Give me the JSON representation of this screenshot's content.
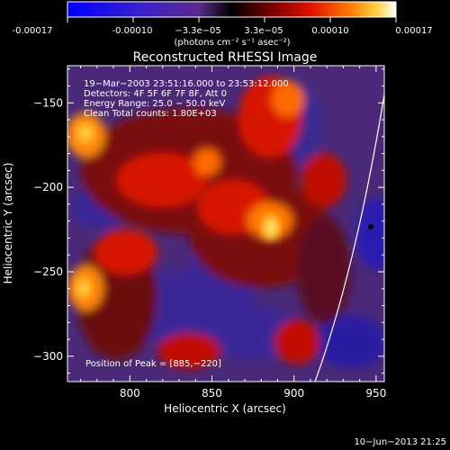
{
  "colorbar": {
    "ticks": [
      "-0.00017",
      "-0.00010",
      "−3.3e−05",
      "3.3e−05",
      "0.00010",
      "0.00017"
    ],
    "units": "(photons cm⁻² s⁻¹ asec⁻²)"
  },
  "title": "Reconstructed RHESSI Image",
  "overlay": {
    "line1": "19−Mar−2003 23:51:16.000 to 23:53:12.000",
    "line2": "Detectors: 4F 5F 6F 7F 8F, Att 0",
    "line3": "Energy Range: 25.0 − 50.0 keV",
    "line4": "Clean     Total counts: 1.80E+03",
    "peak": "Position of Peak = [885,−220]"
  },
  "axes": {
    "xlabel": "Heliocentric X (arcsec)",
    "ylabel": "Heliocentric Y (arcsec)",
    "xticks": [
      {
        "value": 800,
        "label": "800"
      },
      {
        "value": 850,
        "label": "850"
      },
      {
        "value": 900,
        "label": "900"
      },
      {
        "value": 950,
        "label": "950"
      }
    ],
    "yticks": [
      {
        "value": -150,
        "label": "−150"
      },
      {
        "value": -200,
        "label": "−200"
      },
      {
        "value": -250,
        "label": "−250"
      },
      {
        "value": -300,
        "label": "−300"
      }
    ],
    "xlim": [
      762,
      955
    ],
    "ylim": [
      -315,
      -128
    ]
  },
  "timestamp": "10−Jun−2013 21:25"
}
